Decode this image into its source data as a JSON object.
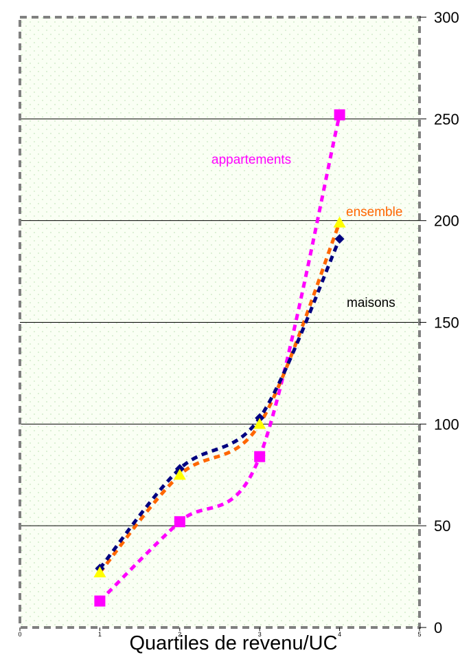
{
  "chart_data": {
    "type": "line",
    "xlabel": "Quartiles de revenu/UC",
    "ylabel": "",
    "xlim": [
      0,
      5
    ],
    "ylim": [
      0,
      300
    ],
    "x_ticks": [
      "0",
      "1",
      "2",
      "3",
      "4",
      "5"
    ],
    "y_ticks": [
      "0",
      "50",
      "100",
      "150",
      "200",
      "250",
      "300"
    ],
    "grid": "horizontal",
    "series": [
      {
        "name": "maisons",
        "color": "#000080",
        "marker": "diamond",
        "x": [
          1,
          2,
          3,
          4
        ],
        "values": [
          29,
          78,
          103,
          191
        ]
      },
      {
        "name": "ensemble",
        "color": "#FF6600",
        "marker_color": "#FFFF00",
        "marker": "triangle",
        "x": [
          1,
          2,
          3,
          4
        ],
        "values": [
          27,
          75,
          100,
          199
        ]
      },
      {
        "name": "appartements",
        "color": "#FF00FF",
        "marker": "square",
        "x": [
          1,
          2,
          3,
          4
        ],
        "values": [
          13,
          52,
          84,
          252
        ]
      }
    ]
  }
}
